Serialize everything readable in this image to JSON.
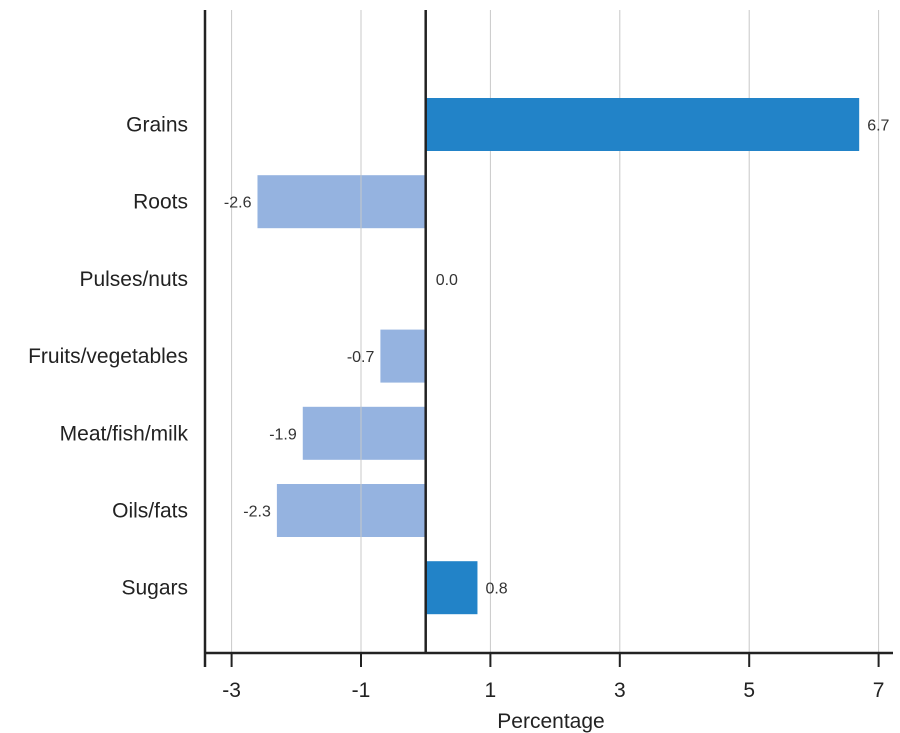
{
  "chart_data": {
    "type": "bar",
    "orientation": "horizontal",
    "title": "",
    "xlabel": "Percentage",
    "ylabel": "",
    "categories": [
      "Grains",
      "Roots",
      "Pulses/nuts",
      "Fruits/vegetables",
      "Meat/fish/milk",
      "Oils/fats",
      "Sugars"
    ],
    "values": [
      6.7,
      -2.6,
      0.0,
      -0.7,
      -1.9,
      -2.3,
      0.8
    ],
    "value_labels": [
      "6.7",
      "-2.6",
      "0.0",
      "-0.7",
      "-1.9",
      "-2.3",
      "0.8"
    ],
    "xticks": [
      -3,
      -1,
      1,
      3,
      5,
      7
    ],
    "xtick_labels": [
      "-3",
      "-1",
      "1",
      "3",
      "5",
      "7"
    ],
    "xlim": [
      -3.4,
      7.2
    ],
    "grid": "vertical",
    "zero_line": true,
    "legend": "none",
    "colors": {
      "positive": "#2283c8",
      "negative": "#95b3e0",
      "grid": "#c8c8c8",
      "axis": "#222222",
      "text": "#222222"
    }
  }
}
